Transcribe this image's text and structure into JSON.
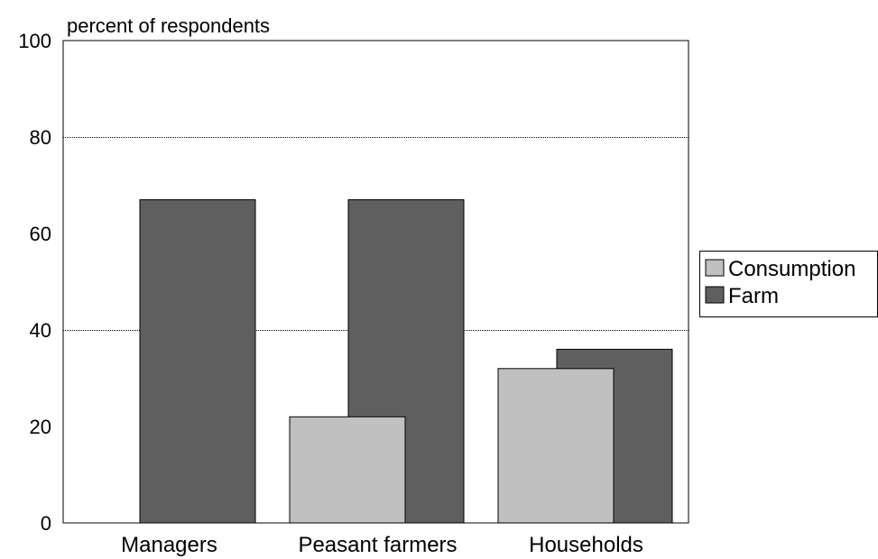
{
  "chart_data": {
    "type": "bar",
    "title": "",
    "ylabel": "percent of respondents",
    "xlabel": "",
    "categories": [
      "Managers",
      "Peasant farmers",
      "Households"
    ],
    "series": [
      {
        "name": "Consumption",
        "values": [
          0,
          22,
          32
        ],
        "color": "#c0c0c0"
      },
      {
        "name": "Farm",
        "values": [
          67,
          67,
          36
        ],
        "color": "#5f5f5f"
      }
    ],
    "ylim": [
      0,
      100
    ],
    "yticks": [
      "0",
      "20",
      "40",
      "60",
      "80",
      "100"
    ],
    "grid": true,
    "legend_position": "right",
    "overlapping_bars": true
  }
}
